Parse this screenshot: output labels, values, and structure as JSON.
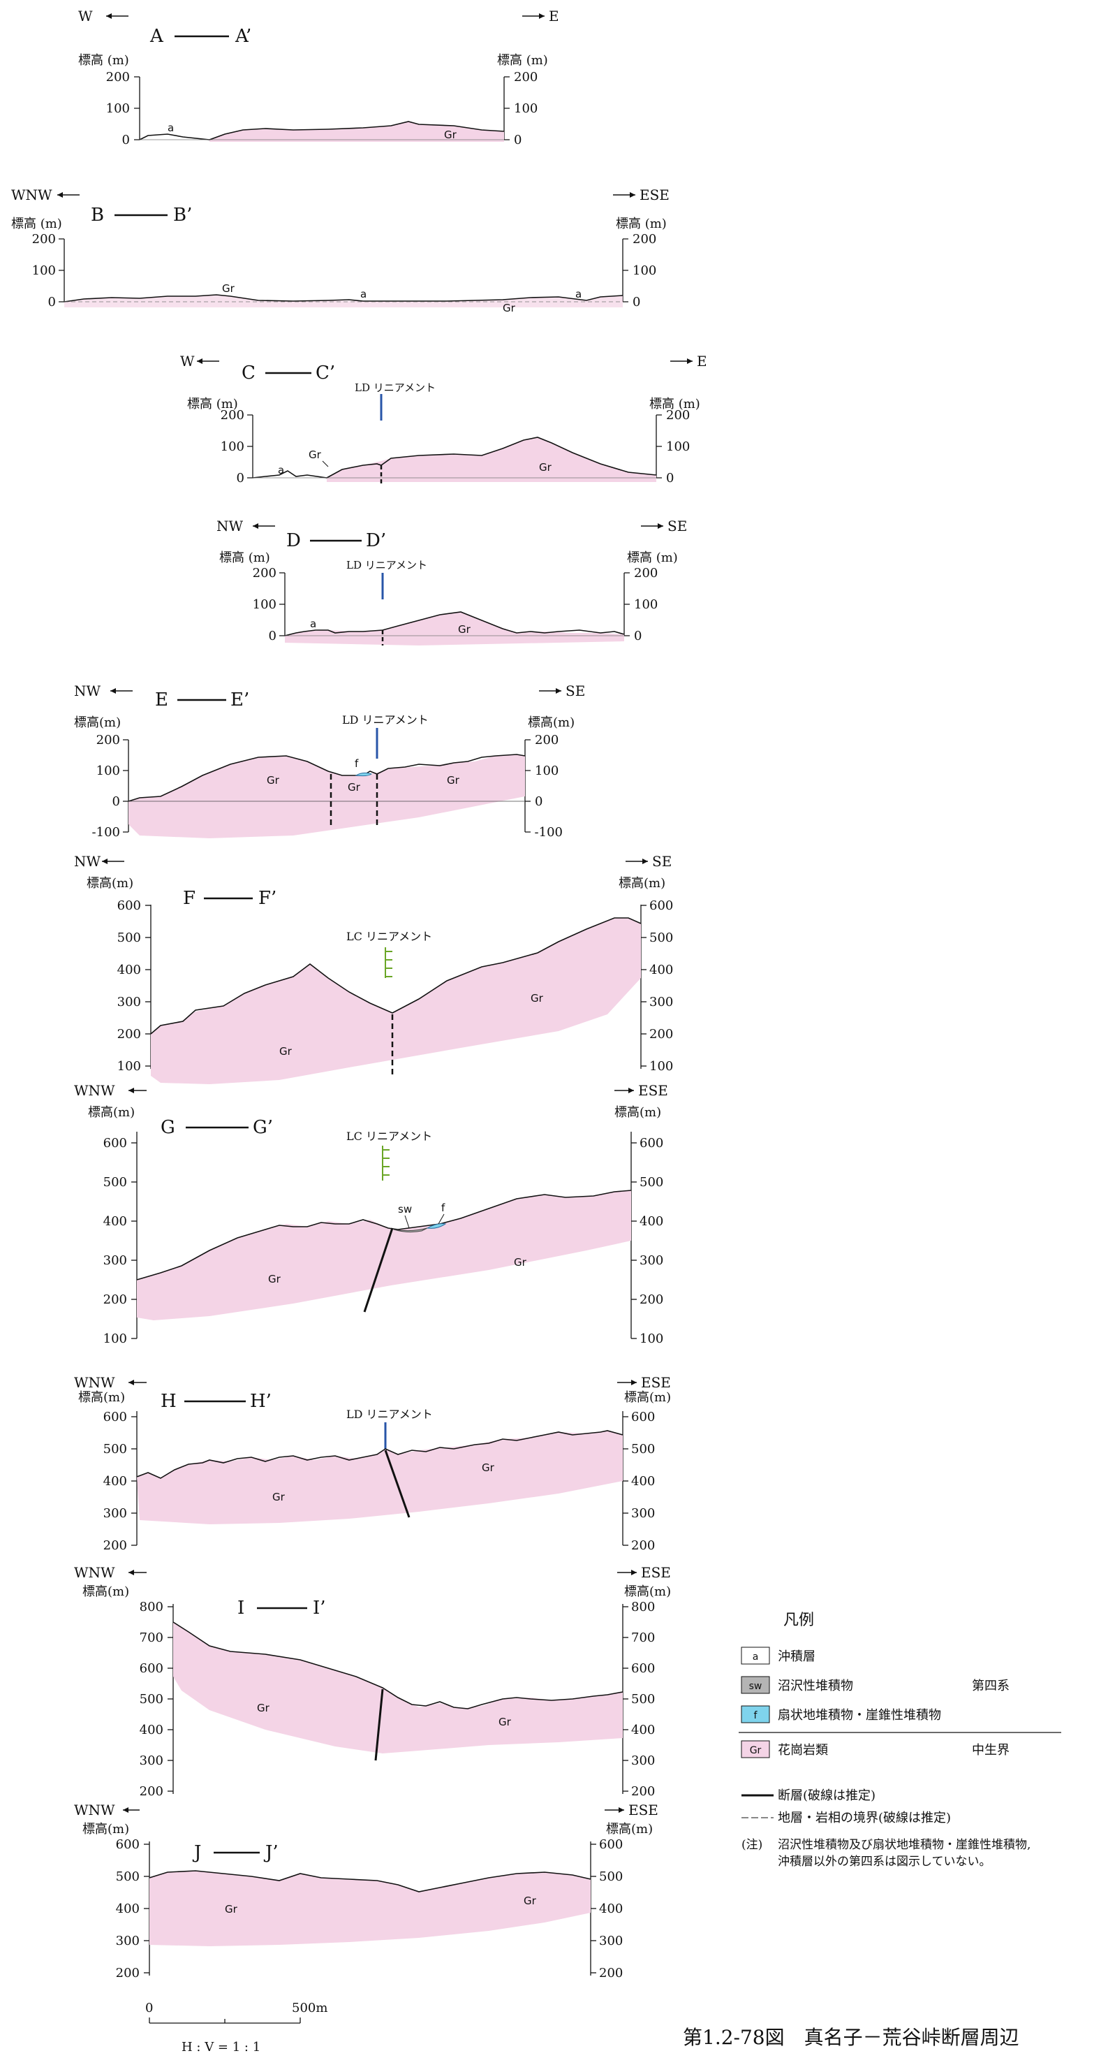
{
  "figure_caption": "第1.2-78図　真名子－荒谷峠断層周辺",
  "sections": [
    {
      "label_start": "A",
      "label_end": "A’",
      "dir_left": "W",
      "dir_right": "E",
      "ylabel_left": "標高 (m)",
      "ylabel_right": "標高 (m)",
      "ticks": [
        0,
        100,
        200
      ],
      "annotations": [
        {
          "text": "a"
        },
        {
          "text": "Gr"
        }
      ]
    },
    {
      "label_start": "B",
      "label_end": "B’",
      "dir_left": "WNW",
      "dir_right": "ESE",
      "ylabel_left": "標高 (m)",
      "ylabel_right": "標高 (m)",
      "ticks": [
        0,
        100,
        200
      ],
      "annotations": [
        {
          "text": "Gr"
        },
        {
          "text": "a"
        },
        {
          "text": "Gr"
        },
        {
          "text": "a"
        }
      ]
    },
    {
      "label_start": "C",
      "label_end": "C’",
      "dir_left": "W",
      "dir_right": "E",
      "ylabel_left": "標高 (m)",
      "ylabel_right": "標高 (m)",
      "ticks": [
        0,
        100,
        200
      ],
      "lineament": "LD リニアメント",
      "annotations": [
        {
          "text": "a"
        },
        {
          "text": "Gr"
        },
        {
          "text": "Gr"
        }
      ]
    },
    {
      "label_start": "D",
      "label_end": "D’",
      "dir_left": "NW",
      "dir_right": "SE",
      "ylabel_left": "標高 (m)",
      "ylabel_right": "標高 (m)",
      "ticks": [
        0,
        100,
        200
      ],
      "lineament": "LD リニアメント",
      "annotations": [
        {
          "text": "a"
        },
        {
          "text": "Gr"
        }
      ]
    },
    {
      "label_start": "E",
      "label_end": "E’",
      "dir_left": "NW",
      "dir_right": "SE",
      "ylabel_left": "標高(m)",
      "ylabel_right": "標高(m)",
      "ticks": [
        -100,
        0,
        100,
        200
      ],
      "lineament": "LD リニアメント",
      "annotations": [
        {
          "text": "Gr"
        },
        {
          "text": "f"
        },
        {
          "text": "Gr"
        },
        {
          "text": "Gr"
        }
      ]
    },
    {
      "label_start": "F",
      "label_end": "F’",
      "dir_left": "NW",
      "dir_right": "SE",
      "ylabel_left": "標高(m)",
      "ylabel_right": "標高(m)",
      "ticks": [
        100,
        200,
        300,
        400,
        500,
        600
      ],
      "lineament": "LC リニアメント",
      "annotations": [
        {
          "text": "Gr"
        },
        {
          "text": "Gr"
        }
      ]
    },
    {
      "label_start": "G",
      "label_end": "G’",
      "dir_left": "WNW",
      "dir_right": "ESE",
      "ylabel_left": "標高(m)",
      "ylabel_right": "標高(m)",
      "ticks": [
        100,
        200,
        300,
        400,
        500,
        600
      ],
      "lineament": "LC リニアメント",
      "annotations": [
        {
          "text": "sw"
        },
        {
          "text": "f"
        },
        {
          "text": "Gr"
        },
        {
          "text": "Gr"
        }
      ]
    },
    {
      "label_start": "H",
      "label_end": "H’",
      "dir_left": "WNW",
      "dir_right": "ESE",
      "ylabel_left": "標高(m)",
      "ylabel_right": "標高(m)",
      "ticks": [
        200,
        300,
        400,
        500,
        600
      ],
      "lineament": "LD リニアメント",
      "annotations": [
        {
          "text": "Gr"
        },
        {
          "text": "Gr"
        }
      ]
    },
    {
      "label_start": "I",
      "label_end": "I’",
      "dir_left": "WNW",
      "dir_right": "ESE",
      "ylabel_left": "標高(m)",
      "ylabel_right": "標高(m)",
      "ticks": [
        200,
        300,
        400,
        500,
        600,
        700,
        800
      ],
      "annotations": [
        {
          "text": "Gr"
        },
        {
          "text": "Gr"
        }
      ]
    },
    {
      "label_start": "J",
      "label_end": "J’",
      "dir_left": "WNW",
      "dir_right": "ESE",
      "ylabel_left": "標高(m)",
      "ylabel_right": "標高(m)",
      "ticks": [
        200,
        300,
        400,
        500,
        600
      ],
      "annotations": [
        {
          "text": "Gr"
        },
        {
          "text": "Gr"
        }
      ]
    }
  ],
  "legend": {
    "title": "凡例",
    "items": [
      {
        "symbol": "a",
        "label": "沖積層",
        "fill": "#ffffff"
      },
      {
        "symbol": "sw",
        "label": "沼沢性堆積物",
        "fill": "#b4b4b4"
      },
      {
        "symbol": "f",
        "label": "扇状地堆積物・崖錐性堆積物",
        "fill": "#7fd3ec"
      },
      {
        "symbol": "Gr",
        "label": "花崗岩類",
        "fill": "#f4d4e6"
      }
    ],
    "era_quaternary": "第四系",
    "era_mesozoic": "中生界",
    "fault_label": "断層(破線は推定)",
    "boundary_label": "地層・岩相の境界(破線は推定)",
    "note_prefix": "(注)",
    "note_line1": "沼沢性堆積物及び扇状地堆積物・崖錐性堆積物,",
    "note_line2": "沖積層以外の第四系は図示していない。"
  },
  "scale": {
    "start": "0",
    "end": "500m",
    "ratio": "H : V = 1 : 1"
  },
  "colors": {
    "granite": "#f4d4e6",
    "alluvium": "#ffffff",
    "swamp": "#b4b4b4",
    "fan": "#7fd3ec",
    "lineament_ld": "#2855a8",
    "lineament_lc": "#6aa626"
  }
}
